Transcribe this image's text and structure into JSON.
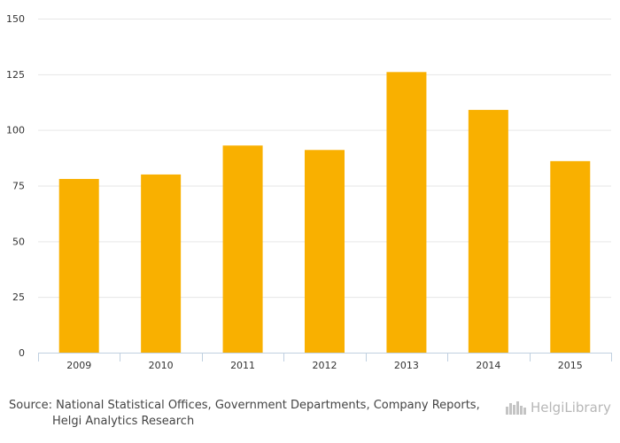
{
  "chart_data": {
    "type": "bar",
    "title": "",
    "xlabel": "",
    "ylabel": "",
    "categories": [
      "2009",
      "2010",
      "2011",
      "2012",
      "2013",
      "2014",
      "2015"
    ],
    "values": [
      78,
      80,
      93,
      91,
      126,
      109,
      86
    ],
    "ylim": [
      0,
      150
    ],
    "yticks": [
      0,
      25,
      50,
      75,
      100,
      125,
      150
    ],
    "grid": true,
    "colors": {
      "bar": "#F9B000",
      "grid": "#E6E6E6",
      "axis": "#C0D0E0"
    }
  },
  "footer": {
    "source_line1": "Source: National Statistical Offices, Government Departments, Company Reports,",
    "source_line2": "Helgi Analytics Research"
  },
  "logo": {
    "brand_a": "Helgi",
    "brand_b": "Library",
    "icon": "helgi-library-logo-icon"
  }
}
